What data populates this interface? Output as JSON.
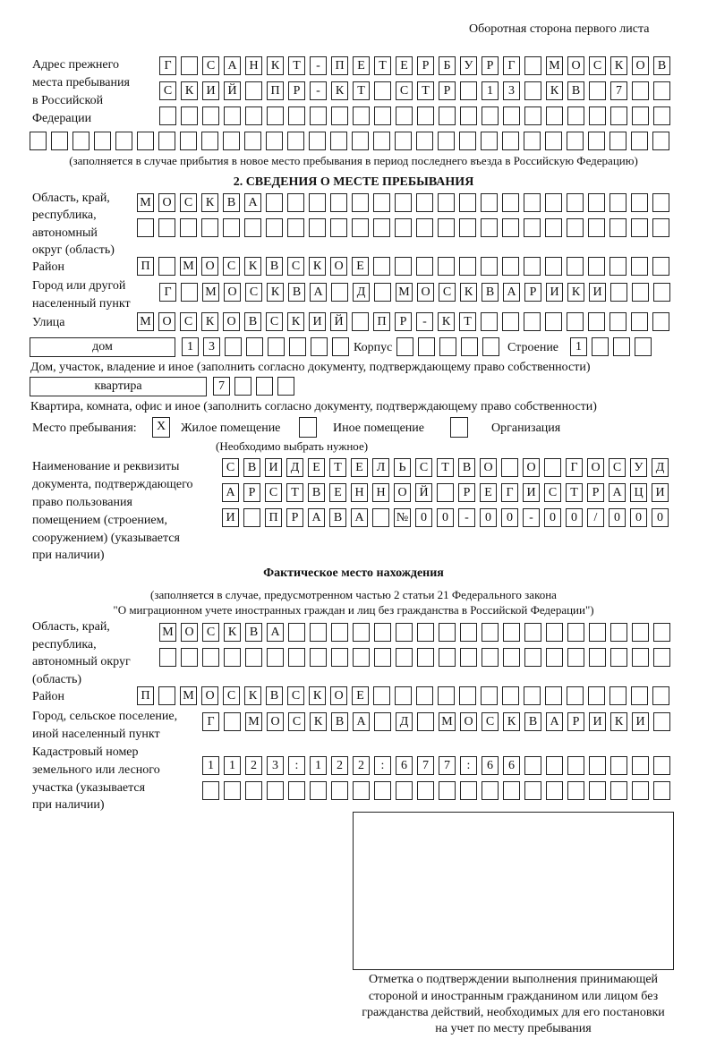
{
  "header": "Оборотная сторона первого листа",
  "prev_address": {
    "label": [
      "Адрес прежнего",
      "места пребывания",
      "в Российской",
      "Федерации"
    ],
    "rows": [
      [
        "Г",
        "",
        "С",
        "А",
        "Н",
        "К",
        "Т",
        "-",
        "П",
        "Е",
        "Т",
        "Е",
        "Р",
        "Б",
        "У",
        "Р",
        "Г",
        "",
        "М",
        "О",
        "С",
        "К",
        "О",
        "В"
      ],
      [
        "С",
        "К",
        "И",
        "Й",
        "",
        "П",
        "Р",
        "-",
        "К",
        "Т",
        "",
        "С",
        "Т",
        "Р",
        "",
        "1",
        "3",
        "",
        "К",
        "В",
        "",
        "7",
        "",
        ""
      ],
      [
        "",
        "",
        "",
        "",
        "",
        "",
        "",
        "",
        "",
        "",
        "",
        "",
        "",
        "",
        "",
        "",
        "",
        "",
        "",
        "",
        "",
        "",
        "",
        ""
      ],
      [
        "",
        "",
        "",
        "",
        "",
        "",
        "",
        "",
        "",
        "",
        "",
        "",
        "",
        "",
        "",
        "",
        "",
        "",
        "",
        "",
        "",
        "",
        "",
        "",
        "",
        "",
        "",
        "",
        "",
        ""
      ]
    ],
    "note": "(заполняется в случае прибытия в новое место пребывания в период последнего въезда в Российскую Федерацию)"
  },
  "section2": {
    "title": "2. СВЕДЕНИЯ О МЕСТЕ ПРЕБЫВАНИЯ",
    "region_label": [
      "Область, край,",
      "республика,",
      "автономный",
      "округ (область)"
    ],
    "region_rows": [
      [
        "М",
        "О",
        "С",
        "К",
        "В",
        "А",
        "",
        "",
        "",
        "",
        "",
        "",
        "",
        "",
        "",
        "",
        "",
        "",
        "",
        "",
        "",
        "",
        "",
        "",
        ""
      ],
      [
        "",
        "",
        "",
        "",
        "",
        "",
        "",
        "",
        "",
        "",
        "",
        "",
        "",
        "",
        "",
        "",
        "",
        "",
        "",
        "",
        "",
        "",
        "",
        "",
        ""
      ]
    ],
    "district_label": "Район",
    "district": [
      "П",
      "",
      "М",
      "О",
      "С",
      "К",
      "В",
      "С",
      "К",
      "О",
      "Е",
      "",
      "",
      "",
      "",
      "",
      "",
      "",
      "",
      "",
      "",
      "",
      "",
      "",
      ""
    ],
    "city_label": [
      "Город или другой",
      "населенный пункт"
    ],
    "city": [
      "Г",
      "",
      "М",
      "О",
      "С",
      "К",
      "В",
      "А",
      "",
      "Д",
      "",
      "М",
      "О",
      "С",
      "К",
      "В",
      "А",
      "Р",
      "И",
      "К",
      "И",
      "",
      "",
      ""
    ],
    "street_label": "Улица",
    "street": [
      "М",
      "О",
      "С",
      "К",
      "О",
      "В",
      "С",
      "К",
      "И",
      "Й",
      "",
      "П",
      "Р",
      "-",
      "К",
      "Т",
      "",
      "",
      "",
      "",
      "",
      "",
      "",
      "",
      ""
    ],
    "house_type": "дом",
    "house": [
      "1",
      "3",
      "",
      "",
      "",
      "",
      "",
      ""
    ],
    "korpus_label": "Корпус",
    "korpus": [
      "",
      "",
      "",
      "",
      ""
    ],
    "building_label": "Строение",
    "building": [
      "1",
      "",
      "",
      ""
    ],
    "house_note": "Дом, участок, владение и иное (заполнить согласно документу, подтверждающему право собственности)",
    "flat_type": "квартира",
    "flat": [
      "7",
      "",
      "",
      ""
    ],
    "flat_note": "Квартира, комната, офис и иное (заполнить согласно документу, подтверждающему право собственности)",
    "stay_label": "Место пребывания:",
    "stay_options": [
      {
        "label": "Жилое помещение",
        "mark": "X"
      },
      {
        "label": "Иное помещение",
        "mark": ""
      },
      {
        "label": "Организация",
        "mark": ""
      }
    ],
    "stay_note": "(Необходимо выбрать нужное)",
    "doc_label": [
      "Наименование и реквизиты",
      "документа, подтверждающего",
      "право пользования",
      "помещением (строением,",
      "сооружением) (указывается",
      "при наличии)"
    ],
    "doc_rows": [
      [
        "С",
        "В",
        "И",
        "Д",
        "Е",
        "Т",
        "Е",
        "Л",
        "Ь",
        "С",
        "Т",
        "В",
        "О",
        "",
        "О",
        "",
        "Г",
        "О",
        "С",
        "У",
        "Д"
      ],
      [
        "А",
        "Р",
        "С",
        "Т",
        "В",
        "Е",
        "Н",
        "Н",
        "О",
        "Й",
        "",
        "Р",
        "Е",
        "Г",
        "И",
        "С",
        "Т",
        "Р",
        "А",
        "Ц",
        "И"
      ],
      [
        "И",
        "",
        "П",
        "Р",
        "А",
        "В",
        "А",
        "",
        "№",
        "0",
        "0",
        "-",
        "0",
        "0",
        "-",
        "0",
        "0",
        "/",
        "0",
        "0",
        "0"
      ]
    ]
  },
  "actual": {
    "title": "Фактическое место нахождения",
    "note": [
      "(заполняется в случае, предусмотренном частью 2 статьи 21 Федерального закона",
      "\"О миграционном учете иностранных граждан и лиц без гражданства в Российской Федерации\")"
    ],
    "region_label": [
      "Область, край,",
      "республика,",
      "автономный округ",
      "(область)"
    ],
    "region_rows": [
      [
        "М",
        "О",
        "С",
        "К",
        "В",
        "А",
        "",
        "",
        "",
        "",
        "",
        "",
        "",
        "",
        "",
        "",
        "",
        "",
        "",
        "",
        "",
        "",
        "",
        ""
      ],
      [
        "",
        "",
        "",
        "",
        "",
        "",
        "",
        "",
        "",
        "",
        "",
        "",
        "",
        "",
        "",
        "",
        "",
        "",
        "",
        "",
        "",
        "",
        "",
        ""
      ]
    ],
    "district_label": "Район",
    "district": [
      "П",
      "",
      "М",
      "О",
      "С",
      "К",
      "В",
      "С",
      "К",
      "О",
      "Е",
      "",
      "",
      "",
      "",
      "",
      "",
      "",
      "",
      "",
      "",
      "",
      "",
      "",
      ""
    ],
    "city_label": [
      "Город, сельское поселение,",
      "иной населенный пункт"
    ],
    "city": [
      "Г",
      "",
      "М",
      "О",
      "С",
      "К",
      "В",
      "А",
      "",
      "Д",
      "",
      "М",
      "О",
      "С",
      "К",
      "В",
      "А",
      "Р",
      "И",
      "К",
      "И",
      ""
    ],
    "cadastre_label": [
      "Кадастровый номер",
      "земельного или лесного",
      "участка (указывается",
      "при наличии)"
    ],
    "cadastre_rows": [
      [
        "1",
        "1",
        "2",
        "3",
        ":",
        "1",
        "2",
        "2",
        ":",
        "6",
        "7",
        "7",
        ":",
        "6",
        "6",
        "",
        "",
        "",
        "",
        "",
        "",
        ""
      ],
      [
        "",
        "",
        "",
        "",
        "",
        "",
        "",
        "",
        "",
        "",
        "",
        "",
        "",
        "",
        "",
        "",
        "",
        "",
        "",
        "",
        "",
        ""
      ]
    ]
  },
  "stamp_caption": [
    "Отметка о подтверждении выполнения принимающей",
    "стороной и иностранным гражданином или лицом без",
    "гражданства действий, необходимых для его постановки",
    "на учет по месту пребывания"
  ]
}
